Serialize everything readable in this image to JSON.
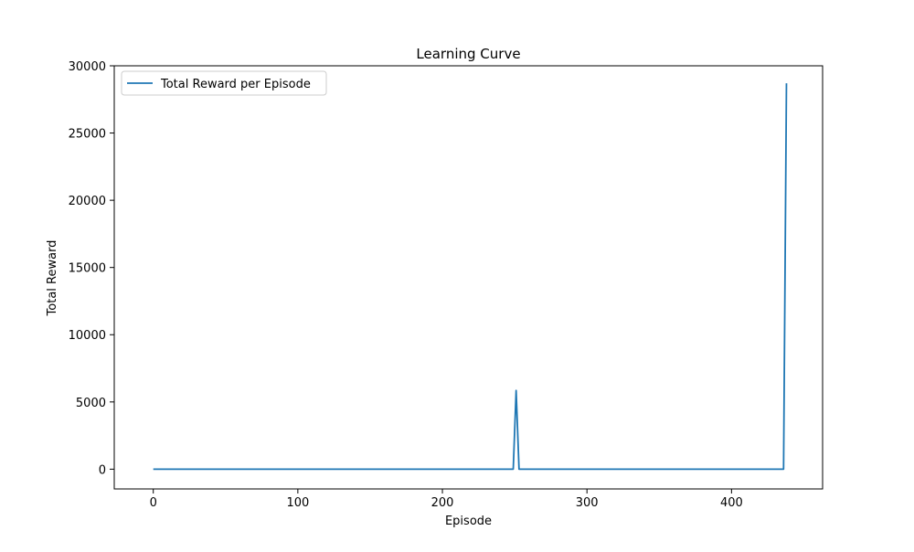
{
  "chart_data": {
    "type": "line",
    "title": "Learning Curve",
    "xlabel": "Episode",
    "ylabel": "Total Reward",
    "xlim": [
      -27,
      463
    ],
    "ylim": [
      -1470,
      30000
    ],
    "xticks": [
      0,
      100,
      200,
      300,
      400
    ],
    "yticks": [
      0,
      5000,
      10000,
      15000,
      20000,
      25000,
      30000
    ],
    "grid": false,
    "legend_position": "top-left",
    "series": [
      {
        "name": "Total Reward per Episode",
        "color": "#1f77b4",
        "points": [
          [
            0,
            0
          ],
          [
            50,
            0
          ],
          [
            100,
            0
          ],
          [
            150,
            0
          ],
          [
            200,
            0
          ],
          [
            249,
            0
          ],
          [
            251,
            5850
          ],
          [
            253,
            0
          ],
          [
            300,
            0
          ],
          [
            350,
            0
          ],
          [
            400,
            0
          ],
          [
            436,
            0
          ],
          [
            438,
            28700
          ]
        ]
      }
    ]
  }
}
